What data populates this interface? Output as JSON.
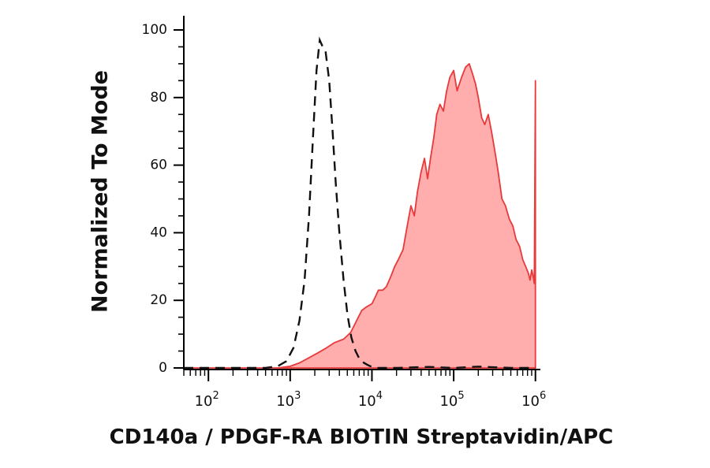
{
  "chart_data": {
    "type": "area",
    "xlabel": "CD140a / PDGF-RA BIOTIN Streptavidin/APC",
    "ylabel": "Normalized To Mode",
    "x_scale": "log",
    "xlim": [
      50,
      1100000
    ],
    "ylim": [
      0,
      100
    ],
    "grid": false,
    "x_tick_bases": [
      "10",
      "10",
      "10",
      "10",
      "10"
    ],
    "x_tick_exps": [
      "2",
      "3",
      "4",
      "5",
      "6"
    ],
    "x_tick_values": [
      100,
      1000,
      10000,
      100000,
      1000000
    ],
    "y_tick_labels": [
      "0",
      "20",
      "40",
      "60",
      "80",
      "100"
    ],
    "y_tick_values": [
      0,
      20,
      40,
      60,
      80,
      100
    ],
    "series": [
      {
        "style": "dashed",
        "color": "#111111",
        "x": [
          50,
          500,
          700,
          900,
          1100,
          1300,
          1500,
          1700,
          1900,
          2100,
          2300,
          2500,
          2700,
          3000,
          3300,
          3600,
          4000,
          4500,
          5000,
          5600,
          6300,
          7100,
          8000,
          9000,
          10000,
          12000,
          20000,
          50000,
          100000,
          200000,
          500000,
          1000000
        ],
        "y": [
          0,
          0,
          0.5,
          2,
          6,
          14,
          26,
          45,
          68,
          88,
          97,
          95,
          94,
          85,
          70,
          55,
          40,
          26,
          16,
          9,
          5,
          2.5,
          1.5,
          0.8,
          0.3,
          0,
          0,
          0.3,
          0,
          0.4,
          0,
          0
        ]
      },
      {
        "style": "filled",
        "color": "#e8393b",
        "fill": "#ffadad",
        "x": [
          50,
          700,
          1000,
          1300,
          1700,
          2200,
          2800,
          3500,
          4500,
          5500,
          6500,
          7500,
          8500,
          10000,
          11000,
          12000,
          13500,
          15000,
          17000,
          19000,
          21000,
          24000,
          27000,
          30000,
          33000,
          36000,
          40000,
          44000,
          48000,
          52000,
          57000,
          62000,
          68000,
          75000,
          82000,
          90000,
          100000,
          110000,
          125000,
          140000,
          155000,
          170000,
          185000,
          200000,
          220000,
          240000,
          265000,
          290000,
          320000,
          350000,
          390000,
          430000,
          480000,
          530000,
          580000,
          640000,
          700000,
          760000,
          820000,
          860000,
          900000,
          940000,
          970000,
          1000000,
          1000000
        ],
        "y": [
          0,
          0,
          0.5,
          1.5,
          3,
          4.5,
          6,
          7.5,
          8.5,
          10.5,
          14,
          17,
          18,
          19,
          21,
          23,
          23,
          24,
          27,
          30,
          32,
          35,
          42,
          48,
          45,
          52,
          58,
          62,
          56,
          62,
          68,
          75,
          78,
          76,
          82,
          86,
          88,
          82,
          86,
          89,
          90,
          87,
          84,
          80,
          74,
          72,
          75,
          70,
          64,
          58,
          50,
          48,
          44,
          42,
          38,
          36,
          32,
          30,
          28,
          26,
          29,
          27,
          25,
          85,
          0
        ]
      }
    ]
  }
}
